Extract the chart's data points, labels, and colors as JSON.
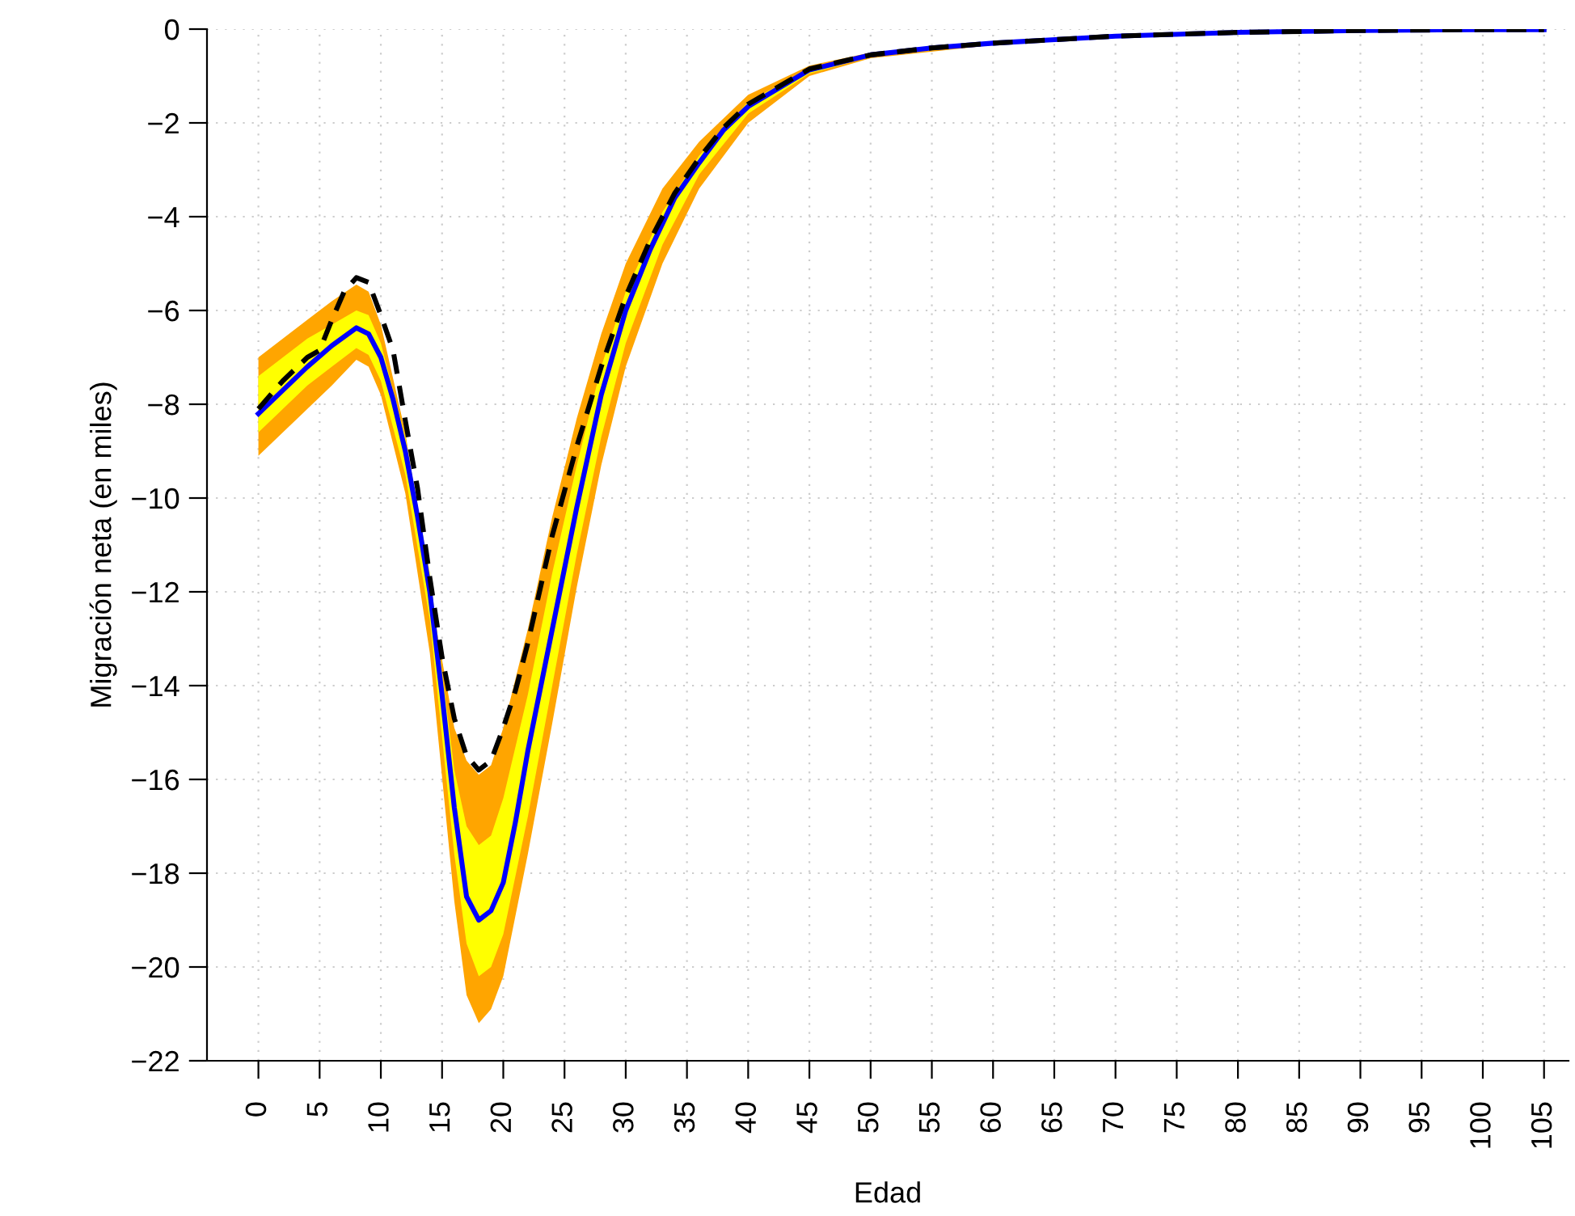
{
  "chart_data": {
    "type": "line",
    "xlabel": "Edad",
    "ylabel": "Migración neta (en miles)",
    "xlim": [
      -4.2,
      107
    ],
    "ylim": [
      -22,
      0
    ],
    "xticks": [
      0,
      5,
      10,
      15,
      20,
      25,
      30,
      35,
      40,
      45,
      50,
      55,
      60,
      65,
      70,
      75,
      80,
      85,
      90,
      95,
      100,
      105
    ],
    "yticks": [
      {
        "value": 0,
        "label": "0"
      },
      {
        "value": -2,
        "label": "−2"
      },
      {
        "value": -4,
        "label": "−4"
      },
      {
        "value": -6,
        "label": "−6"
      },
      {
        "value": -8,
        "label": "−8"
      },
      {
        "value": -10,
        "label": "−10"
      },
      {
        "value": -12,
        "label": "−12"
      },
      {
        "value": -14,
        "label": "−14"
      },
      {
        "value": -16,
        "label": "−16"
      },
      {
        "value": -18,
        "label": "−18"
      },
      {
        "value": -20,
        "label": "−20"
      },
      {
        "value": -22,
        "label": "−22"
      }
    ],
    "grid": true,
    "legend": false,
    "series": [
      {
        "color": "#ffa500",
        "x": [
          0,
          2,
          4,
          6,
          8,
          9,
          10,
          12,
          14,
          16,
          17,
          18,
          19,
          20,
          22,
          24,
          26,
          28,
          30,
          33,
          36,
          40,
          45,
          50,
          60,
          70,
          80,
          105
        ],
        "values": [
          null,
          null,
          null,
          null,
          null,
          null,
          null,
          null,
          null,
          null,
          null,
          null,
          null,
          null,
          null,
          null,
          null,
          null,
          null,
          null,
          null,
          null,
          null,
          null,
          null,
          null,
          null,
          null
        ],
        "upper": [
          -7.0,
          -6.6,
          -6.2,
          -5.8,
          -5.45,
          -5.6,
          -6.3,
          -8.6,
          -12.0,
          -14.9,
          -15.6,
          -15.9,
          -15.7,
          -14.9,
          -12.8,
          -10.4,
          -8.3,
          -6.5,
          -5.0,
          -3.4,
          -2.4,
          -1.4,
          -0.78,
          -0.5,
          -0.28,
          -0.14,
          -0.07,
          -0.01
        ],
        "lower": [
          -9.1,
          -8.6,
          -8.1,
          -7.6,
          -7.05,
          -7.2,
          -7.8,
          -9.9,
          -13.3,
          -18.6,
          -20.6,
          -21.2,
          -20.9,
          -20.2,
          -17.6,
          -14.8,
          -11.9,
          -9.3,
          -7.2,
          -5.0,
          -3.4,
          -2.0,
          -1.0,
          -0.62,
          -0.34,
          -0.17,
          -0.08,
          -0.01
        ]
      },
      {
        "color": "#ffff00",
        "x": [
          0,
          2,
          4,
          6,
          8,
          9,
          10,
          12,
          14,
          16,
          17,
          18,
          19,
          20,
          22,
          24,
          26,
          28,
          30,
          33,
          36,
          40,
          45,
          50,
          60,
          70,
          80,
          105
        ],
        "values": [
          null,
          null,
          null,
          null,
          null,
          null,
          null,
          null,
          null,
          null,
          null,
          null,
          null,
          null,
          null,
          null,
          null,
          null,
          null,
          null,
          null,
          null,
          null,
          null,
          null,
          null,
          null,
          null
        ],
        "upper": [
          -7.4,
          -7.0,
          -6.6,
          -6.3,
          -6.0,
          -6.1,
          -6.7,
          -8.7,
          -11.6,
          -15.8,
          -17.0,
          -17.4,
          -17.2,
          -16.4,
          -14.2,
          -11.6,
          -9.3,
          -7.2,
          -5.6,
          -3.9,
          -2.7,
          -1.55,
          -0.84,
          -0.53,
          -0.29,
          -0.15,
          -0.07,
          -0.01
        ],
        "lower": [
          -8.6,
          -8.1,
          -7.6,
          -7.2,
          -6.8,
          -6.95,
          -7.5,
          -9.5,
          -12.6,
          -17.6,
          -19.5,
          -20.2,
          -20.0,
          -19.3,
          -16.8,
          -14.0,
          -11.2,
          -8.7,
          -6.7,
          -4.6,
          -3.1,
          -1.8,
          -0.95,
          -0.59,
          -0.32,
          -0.16,
          -0.08,
          -0.01
        ]
      },
      {
        "color": "#0000ff",
        "line_style": "solid",
        "x": [
          0,
          2,
          4,
          6,
          8,
          9,
          10,
          11,
          12,
          13,
          14,
          15,
          16,
          17,
          18,
          19,
          20,
          21,
          22,
          24,
          26,
          28,
          30,
          32,
          34,
          36,
          38,
          40,
          45,
          50,
          55,
          60,
          70,
          80,
          90,
          100,
          105
        ],
        "values": [
          -8.2,
          -7.7,
          -7.2,
          -6.75,
          -6.37,
          -6.5,
          -7.0,
          -7.9,
          -9.0,
          -10.4,
          -12.0,
          -14.2,
          -16.6,
          -18.5,
          -19.0,
          -18.8,
          -18.2,
          -16.9,
          -15.4,
          -12.8,
          -10.2,
          -7.8,
          -6.0,
          -4.7,
          -3.6,
          -2.85,
          -2.15,
          -1.65,
          -0.87,
          -0.55,
          -0.4,
          -0.3,
          -0.15,
          -0.07,
          -0.03,
          -0.01,
          -0.01
        ]
      },
      {
        "color": "#000000",
        "line_style": "dashed",
        "x": [
          0,
          2,
          4,
          5,
          6,
          7,
          8,
          9,
          10,
          11,
          12,
          13,
          14,
          15,
          16,
          17,
          18,
          19,
          20,
          21,
          22,
          24,
          26,
          28,
          30,
          32,
          34,
          36,
          38,
          40,
          45,
          50,
          55,
          60,
          70,
          80,
          90,
          100,
          105
        ],
        "values": [
          -8.1,
          -7.5,
          -7.0,
          -6.85,
          -6.2,
          -5.6,
          -5.3,
          -5.4,
          -6.1,
          -6.85,
          -8.35,
          -9.8,
          -11.7,
          -13.4,
          -14.7,
          -15.5,
          -15.8,
          -15.6,
          -14.9,
          -14.1,
          -13.1,
          -10.8,
          -8.9,
          -7.2,
          -5.7,
          -4.5,
          -3.5,
          -2.75,
          -2.1,
          -1.6,
          -0.85,
          -0.55,
          -0.4,
          -0.3,
          -0.15,
          -0.07,
          -0.03,
          -0.01,
          -0.01
        ]
      }
    ]
  }
}
